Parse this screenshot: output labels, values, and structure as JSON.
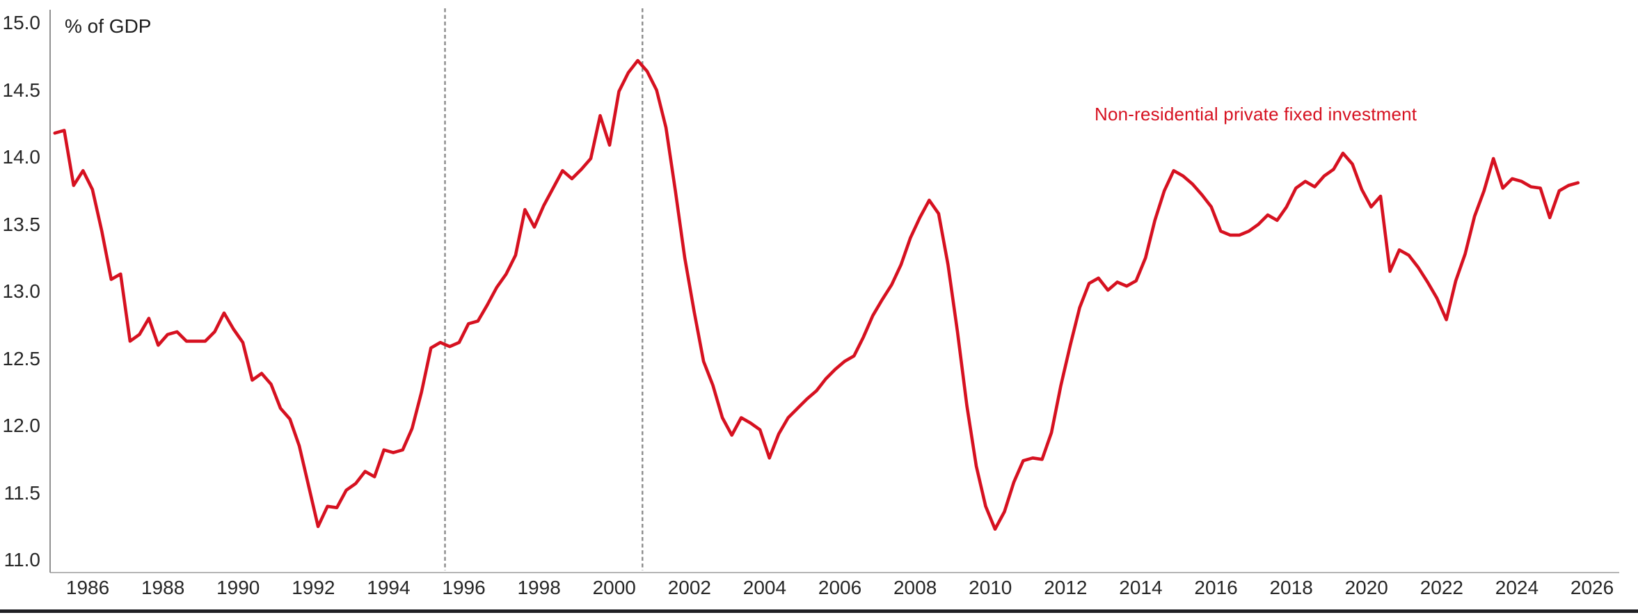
{
  "labels": {
    "unit": "% of GDP",
    "series": "Non-residential private fixed investment"
  },
  "colors": {
    "line": "#d61120",
    "legend_text": "#d61120",
    "x_axis": "#b5b5b5",
    "y_axis": "#909090",
    "dashed_line": "#8a8a8a",
    "tick_text": "#262626",
    "bottom_bar": "#1f1f24"
  },
  "chart_data": {
    "type": "line",
    "title": "",
    "ylabel": "% of GDP",
    "xlabel": "",
    "ylim": [
      11.0,
      15.0
    ],
    "xlim": [
      1985.0,
      2026.6
    ],
    "grid": false,
    "legend_position": "inline-upper-right",
    "y_tick_labels": [
      "15.0",
      "14.5",
      "14.0",
      "13.5",
      "13.0",
      "12.5",
      "12.0",
      "11.5",
      "11.0"
    ],
    "x_tick_labels": [
      "1986",
      "1988",
      "1990",
      "1992",
      "1994",
      "1996",
      "1998",
      "2000",
      "2002",
      "2004",
      "2006",
      "2008",
      "2010",
      "2012",
      "2014",
      "2016",
      "2018",
      "2020",
      "2022",
      "2024",
      "2026"
    ],
    "dashed_vlines": [
      1995.5,
      2000.75
    ],
    "series": [
      {
        "name": "Non-residential private fixed investment",
        "unit": "% of GDP",
        "frequency": "quarterly",
        "start": "1985Q1",
        "end": "2025Q3",
        "values": [
          14.18,
          14.2,
          13.79,
          13.9,
          13.76,
          13.45,
          13.09,
          13.13,
          12.63,
          12.68,
          12.8,
          12.6,
          12.68,
          12.7,
          12.63,
          12.63,
          12.63,
          12.7,
          12.84,
          12.72,
          12.62,
          12.34,
          12.39,
          12.31,
          12.13,
          12.05,
          11.85,
          11.55,
          11.25,
          11.4,
          11.39,
          11.52,
          11.57,
          11.66,
          11.62,
          11.82,
          11.8,
          11.82,
          11.98,
          12.25,
          12.58,
          12.62,
          12.59,
          12.62,
          12.76,
          12.78,
          12.9,
          13.03,
          13.13,
          13.27,
          13.61,
          13.48,
          13.64,
          13.77,
          13.9,
          13.84,
          13.91,
          13.99,
          14.31,
          14.09,
          14.49,
          14.63,
          14.72,
          14.64,
          14.5,
          14.22,
          13.75,
          13.25,
          12.85,
          12.48,
          12.3,
          12.06,
          11.93,
          12.06,
          12.02,
          11.97,
          11.76,
          11.94,
          12.06,
          12.13,
          12.2,
          12.26,
          12.35,
          12.42,
          12.48,
          12.52,
          12.66,
          12.82,
          12.94,
          13.05,
          13.2,
          13.4,
          13.55,
          13.68,
          13.58,
          13.2,
          12.7,
          12.15,
          11.7,
          11.4,
          11.23,
          11.36,
          11.58,
          11.74,
          11.76,
          11.75,
          11.95,
          12.3,
          12.6,
          12.88,
          13.06,
          13.1,
          13.01,
          13.07,
          13.04,
          13.08,
          13.25,
          13.53,
          13.75,
          13.9,
          13.86,
          13.8,
          13.72,
          13.63,
          13.45,
          13.42,
          13.42,
          13.45,
          13.5,
          13.57,
          13.53,
          13.63,
          13.77,
          13.82,
          13.78,
          13.86,
          13.91,
          14.03,
          13.95,
          13.76,
          13.63,
          13.71,
          13.15,
          13.31,
          13.27,
          13.18,
          13.07,
          12.95,
          12.79,
          13.08,
          13.28,
          13.56,
          13.75,
          13.99,
          13.77,
          13.84,
          13.82,
          13.78,
          13.77,
          13.55,
          13.75,
          13.79,
          13.81
        ]
      }
    ]
  }
}
